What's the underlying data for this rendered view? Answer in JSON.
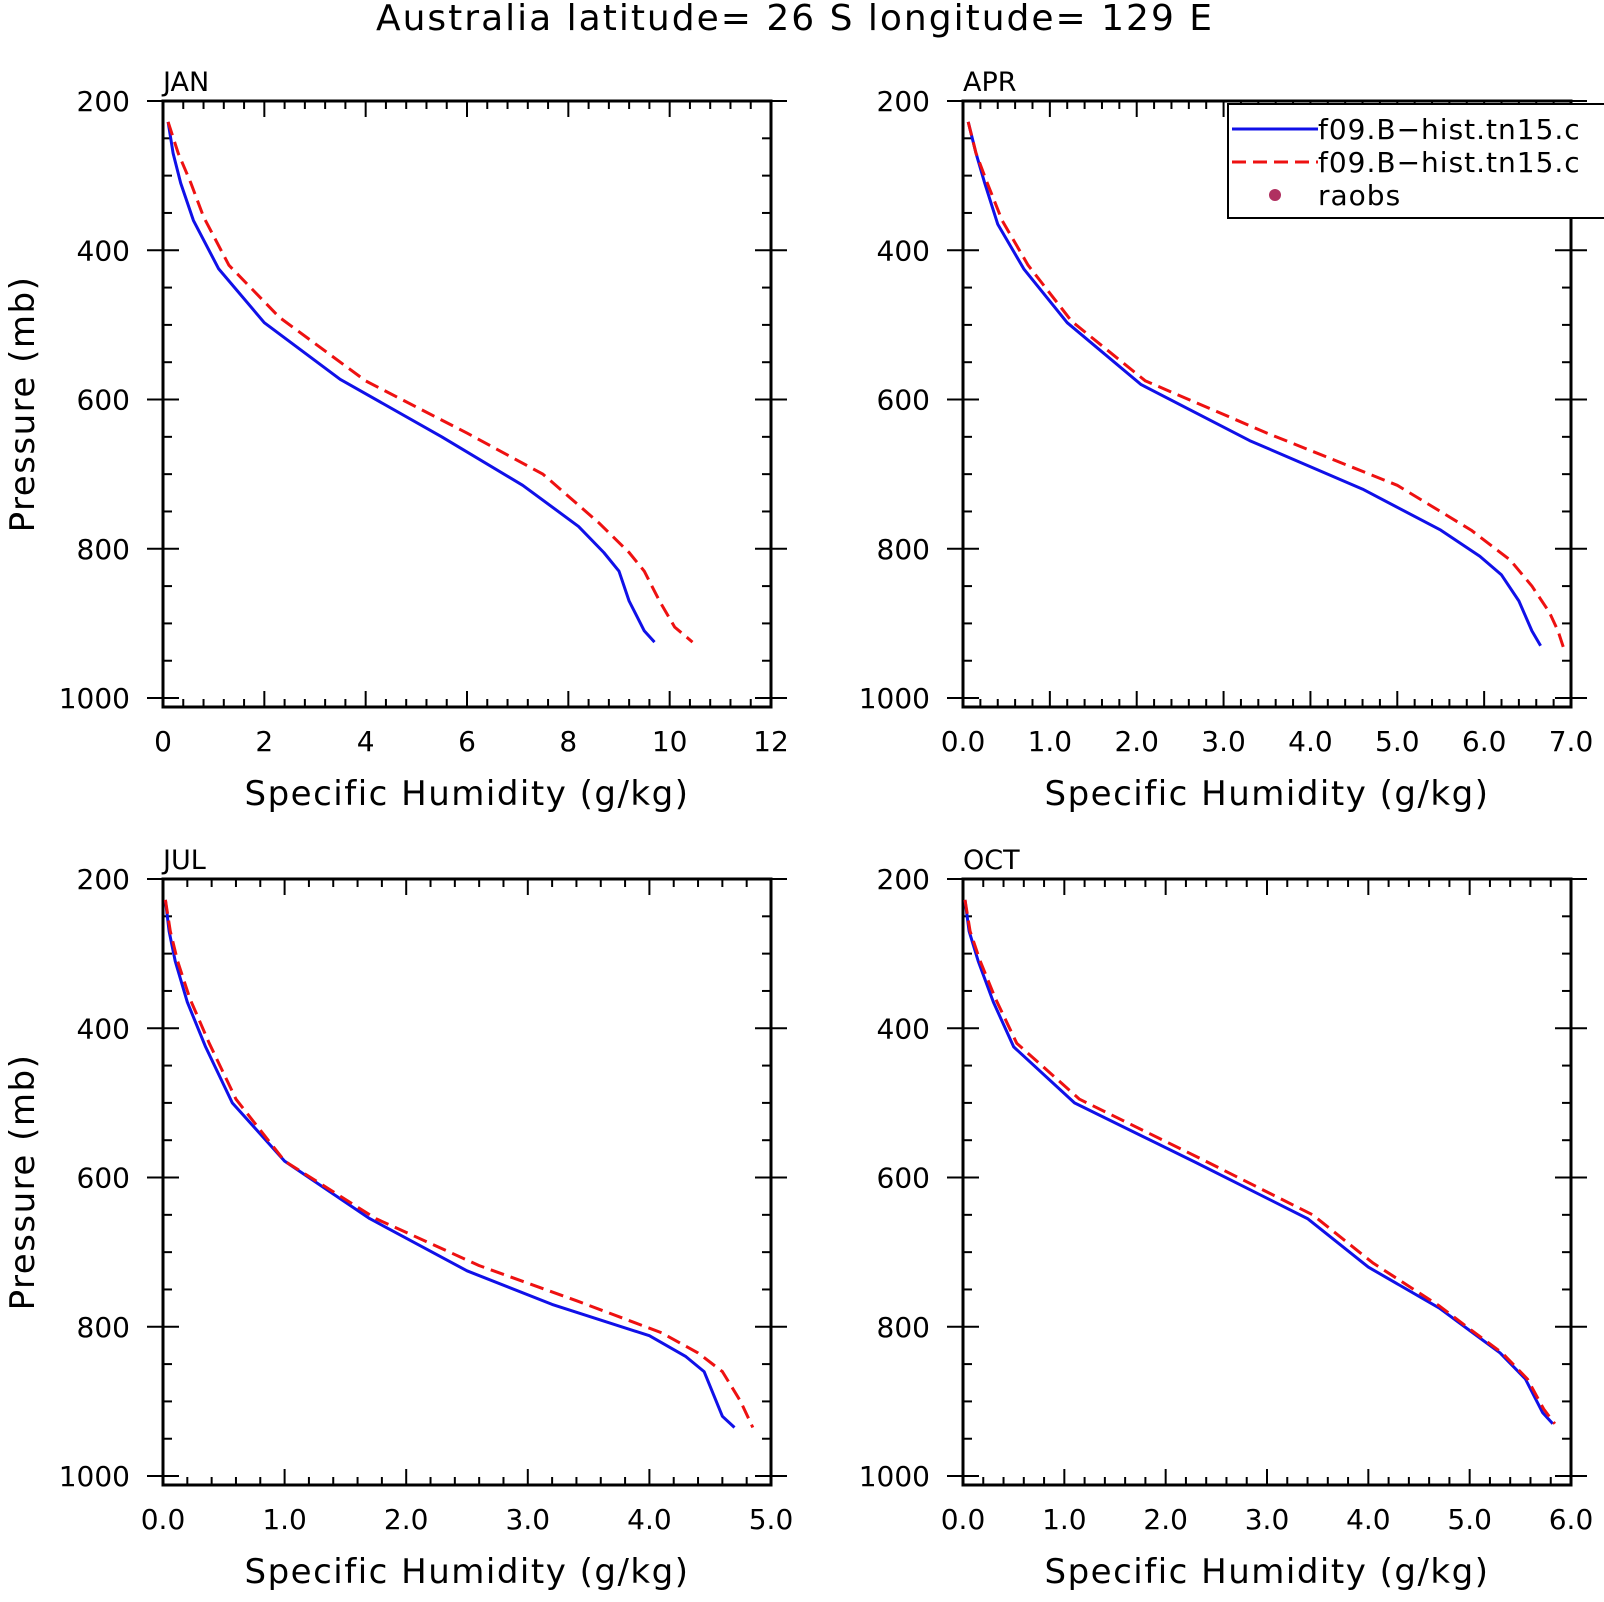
{
  "title": "Australia  latitude= 26 S longitude= 129 E",
  "legend": {
    "placement": "top-right of APR panel",
    "entries": [
      {
        "label": "f09.B−hist.tn15.c",
        "color": "#1010e8",
        "style": "solid"
      },
      {
        "label": "f09.B−hist.tn15.c",
        "color": "#ee1111",
        "style": "dashed"
      },
      {
        "label": "raobs",
        "color": "#b03060",
        "style": "dot"
      }
    ]
  },
  "colors": {
    "series_a": "#1010e8",
    "series_b": "#ee1111",
    "raobs": "#b03060"
  },
  "chart_data": [
    {
      "type": "line",
      "title": "JAN",
      "xlabel": "Specific Humidity (g/kg)",
      "ylabel": "Pressure (mb)",
      "xlim": [
        0,
        12
      ],
      "ylim": [
        1000,
        200
      ],
      "y_inverted": true,
      "grid": false,
      "xticks": [
        0,
        2,
        4,
        6,
        8,
        10,
        12
      ],
      "xtick_labels": [
        "0",
        "2",
        "4",
        "6",
        "8",
        "10",
        "12"
      ],
      "yticks": [
        200,
        400,
        600,
        800,
        1000
      ],
      "ytick_labels": [
        "200",
        "400",
        "600",
        "800",
        "1000"
      ],
      "series": [
        {
          "style": "solid",
          "color": "#1010e8",
          "points": [
            [
              0.1,
              228
            ],
            [
              0.2,
              270
            ],
            [
              0.35,
              310
            ],
            [
              0.6,
              360
            ],
            [
              1.1,
              425
            ],
            [
              2.0,
              497
            ],
            [
              3.5,
              573
            ],
            [
              5.5,
              650
            ],
            [
              7.1,
              715
            ],
            [
              8.2,
              770
            ],
            [
              8.7,
              805
            ],
            [
              9.0,
              830
            ],
            [
              9.2,
              870
            ],
            [
              9.5,
              910
            ],
            [
              9.7,
              925
            ]
          ]
        },
        {
          "style": "dashed",
          "color": "#ee1111",
          "points": [
            [
              0.1,
              228
            ],
            [
              0.3,
              270
            ],
            [
              0.55,
              310
            ],
            [
              0.8,
              355
            ],
            [
              1.3,
              420
            ],
            [
              2.3,
              490
            ],
            [
              4.0,
              575
            ],
            [
              6.0,
              645
            ],
            [
              7.5,
              700
            ],
            [
              8.6,
              765
            ],
            [
              9.2,
              805
            ],
            [
              9.5,
              830
            ],
            [
              9.8,
              870
            ],
            [
              10.1,
              905
            ],
            [
              10.45,
              925
            ]
          ]
        }
      ]
    },
    {
      "type": "line",
      "title": "APR",
      "xlabel": "Specific Humidity (g/kg)",
      "ylabel": "",
      "xlim": [
        0,
        7
      ],
      "ylim": [
        1000,
        200
      ],
      "y_inverted": true,
      "grid": false,
      "xticks": [
        0,
        1,
        2,
        3,
        4,
        5,
        6,
        7
      ],
      "xtick_labels": [
        "0.0",
        "1.0",
        "2.0",
        "3.0",
        "4.0",
        "5.0",
        "6.0",
        "7.0"
      ],
      "yticks": [
        200,
        400,
        600,
        800,
        1000
      ],
      "ytick_labels": [
        "200",
        "400",
        "600",
        "800",
        "1000"
      ],
      "series": [
        {
          "style": "solid",
          "color": "#1010e8",
          "points": [
            [
              0.06,
              228
            ],
            [
              0.15,
              270
            ],
            [
              0.25,
              310
            ],
            [
              0.4,
              365
            ],
            [
              0.7,
              425
            ],
            [
              1.2,
              497
            ],
            [
              2.05,
              580
            ],
            [
              3.3,
              655
            ],
            [
              4.6,
              720
            ],
            [
              5.5,
              775
            ],
            [
              5.95,
              810
            ],
            [
              6.2,
              835
            ],
            [
              6.4,
              870
            ],
            [
              6.55,
              910
            ],
            [
              6.65,
              930
            ]
          ]
        },
        {
          "style": "dashed",
          "color": "#ee1111",
          "points": [
            [
              0.06,
              228
            ],
            [
              0.15,
              270
            ],
            [
              0.28,
              310
            ],
            [
              0.45,
              360
            ],
            [
              0.75,
              420
            ],
            [
              1.25,
              495
            ],
            [
              2.1,
              575
            ],
            [
              3.5,
              645
            ],
            [
              5.0,
              715
            ],
            [
              5.85,
              775
            ],
            [
              6.3,
              815
            ],
            [
              6.55,
              850
            ],
            [
              6.75,
              885
            ],
            [
              6.85,
              910
            ],
            [
              6.92,
              935
            ]
          ]
        }
      ]
    },
    {
      "type": "line",
      "title": "JUL",
      "xlabel": "Specific Humidity (g/kg)",
      "ylabel": "Pressure (mb)",
      "xlim": [
        0,
        5
      ],
      "ylim": [
        1000,
        200
      ],
      "y_inverted": true,
      "grid": false,
      "xticks": [
        0,
        1,
        2,
        3,
        4,
        5
      ],
      "xtick_labels": [
        "0.0",
        "1.0",
        "2.0",
        "3.0",
        "4.0",
        "5.0"
      ],
      "yticks": [
        200,
        400,
        600,
        800,
        1000
      ],
      "ytick_labels": [
        "200",
        "400",
        "600",
        "800",
        "1000"
      ],
      "series": [
        {
          "style": "solid",
          "color": "#1010e8",
          "points": [
            [
              0.02,
              228
            ],
            [
              0.05,
              270
            ],
            [
              0.1,
              310
            ],
            [
              0.2,
              365
            ],
            [
              0.35,
              425
            ],
            [
              0.57,
              500
            ],
            [
              1.0,
              578
            ],
            [
              1.7,
              655
            ],
            [
              2.5,
              725
            ],
            [
              3.2,
              770
            ],
            [
              4.0,
              812
            ],
            [
              4.3,
              840
            ],
            [
              4.45,
              860
            ],
            [
              4.6,
              920
            ],
            [
              4.7,
              935
            ]
          ]
        },
        {
          "style": "dashed",
          "color": "#ee1111",
          "points": [
            [
              0.02,
              228
            ],
            [
              0.06,
              270
            ],
            [
              0.12,
              310
            ],
            [
              0.22,
              360
            ],
            [
              0.38,
              420
            ],
            [
              0.6,
              495
            ],
            [
              1.0,
              578
            ],
            [
              1.75,
              655
            ],
            [
              2.6,
              718
            ],
            [
              3.4,
              765
            ],
            [
              4.1,
              808
            ],
            [
              4.4,
              835
            ],
            [
              4.6,
              860
            ],
            [
              4.75,
              900
            ],
            [
              4.85,
              935
            ]
          ]
        }
      ]
    },
    {
      "type": "line",
      "title": "OCT",
      "xlabel": "Specific Humidity (g/kg)",
      "ylabel": "",
      "xlim": [
        0,
        6
      ],
      "ylim": [
        1000,
        200
      ],
      "y_inverted": true,
      "grid": false,
      "xticks": [
        0,
        1,
        2,
        3,
        4,
        5,
        6
      ],
      "xtick_labels": [
        "0.0",
        "1.0",
        "2.0",
        "3.0",
        "4.0",
        "5.0",
        "6.0"
      ],
      "yticks": [
        200,
        400,
        600,
        800,
        1000
      ],
      "ytick_labels": [
        "200",
        "400",
        "600",
        "800",
        "1000"
      ],
      "series": [
        {
          "style": "solid",
          "color": "#1010e8",
          "points": [
            [
              0.02,
              228
            ],
            [
              0.06,
              270
            ],
            [
              0.15,
              310
            ],
            [
              0.3,
              365
            ],
            [
              0.5,
              425
            ],
            [
              1.1,
              500
            ],
            [
              2.3,
              580
            ],
            [
              3.4,
              655
            ],
            [
              4.0,
              720
            ],
            [
              4.7,
              775
            ],
            [
              5.0,
              805
            ],
            [
              5.3,
              835
            ],
            [
              5.55,
              870
            ],
            [
              5.72,
              915
            ],
            [
              5.82,
              930
            ]
          ]
        },
        {
          "style": "dashed",
          "color": "#ee1111",
          "points": [
            [
              0.02,
              228
            ],
            [
              0.07,
              270
            ],
            [
              0.17,
              310
            ],
            [
              0.32,
              360
            ],
            [
              0.53,
              420
            ],
            [
              1.15,
              495
            ],
            [
              2.35,
              575
            ],
            [
              3.45,
              650
            ],
            [
              4.05,
              715
            ],
            [
              4.7,
              772
            ],
            [
              5.02,
              805
            ],
            [
              5.32,
              835
            ],
            [
              5.57,
              870
            ],
            [
              5.73,
              910
            ],
            [
              5.84,
              930
            ]
          ]
        }
      ]
    }
  ]
}
